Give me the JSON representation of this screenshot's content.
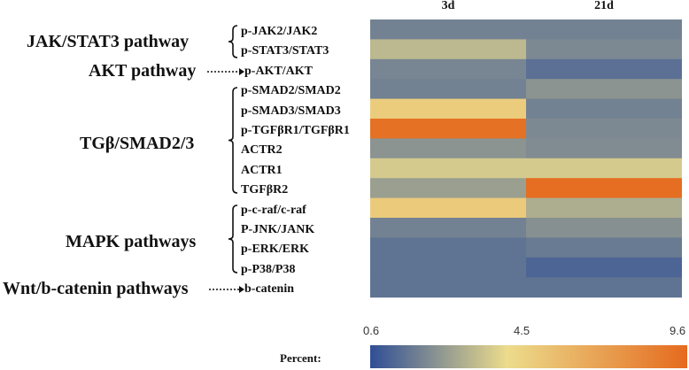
{
  "chart_data": {
    "type": "heatmap",
    "columns": [
      "3d",
      "21d"
    ],
    "rows": [
      "p-JAK2/JAK2",
      "p-STAT3/STAT3",
      "p-AKT/AKT",
      "p-SMAD2/SMAD2",
      "p-SMAD3/SMAD3",
      "p-TGFβR1/TGFβR1",
      "ACTR2",
      "ACTR1",
      "TGFβR2",
      "p-c-raf/c-raf",
      "P-JNK/JANK",
      "p-ERK/ERK",
      "p-P38/P38",
      "b-catenin"
    ],
    "values": [
      [
        2.0,
        2.0
      ],
      [
        3.5,
        2.2
      ],
      [
        2.1,
        1.5
      ],
      [
        2.0,
        2.5
      ],
      [
        5.2,
        2.0
      ],
      [
        9.3,
        2.2
      ],
      [
        2.5,
        2.3
      ],
      [
        4.0,
        4.0
      ],
      [
        2.8,
        9.4
      ],
      [
        5.3,
        3.2
      ],
      [
        2.0,
        2.4
      ],
      [
        1.6,
        1.8
      ],
      [
        1.6,
        1.2
      ],
      [
        1.6,
        1.6
      ]
    ],
    "groups": [
      {
        "label": "JAK/STAT3 pathway",
        "rows": [
          "p-JAK2/JAK2",
          "p-STAT3/STAT3"
        ]
      },
      {
        "label": "AKT pathway",
        "rows": [
          "p-AKT/AKT"
        ]
      },
      {
        "label": "TGβ/SMAD2/3",
        "rows": [
          "p-SMAD2/SMAD2",
          "p-SMAD3/SMAD3",
          "p-TGFβR1/TGFβR1",
          "ACTR2",
          "ACTR1",
          "TGFβR2"
        ]
      },
      {
        "label": "MAPK pathways",
        "rows": [
          "p-c-raf/c-raf",
          "P-JNK/JANK",
          "p-ERK/ERK",
          "p-P38/P38"
        ]
      },
      {
        "label": "Wnt/b-catenin pathways",
        "rows": [
          "b-catenin"
        ]
      }
    ],
    "legend": {
      "title": "Percent:",
      "min": 0.6,
      "mid": 4.5,
      "max": 9.6,
      "tick_labels": [
        "0.6",
        "4.5",
        "9.6"
      ],
      "colors": [
        "#2f4f96",
        "#ecdc8c",
        "#e56a1e"
      ]
    }
  }
}
